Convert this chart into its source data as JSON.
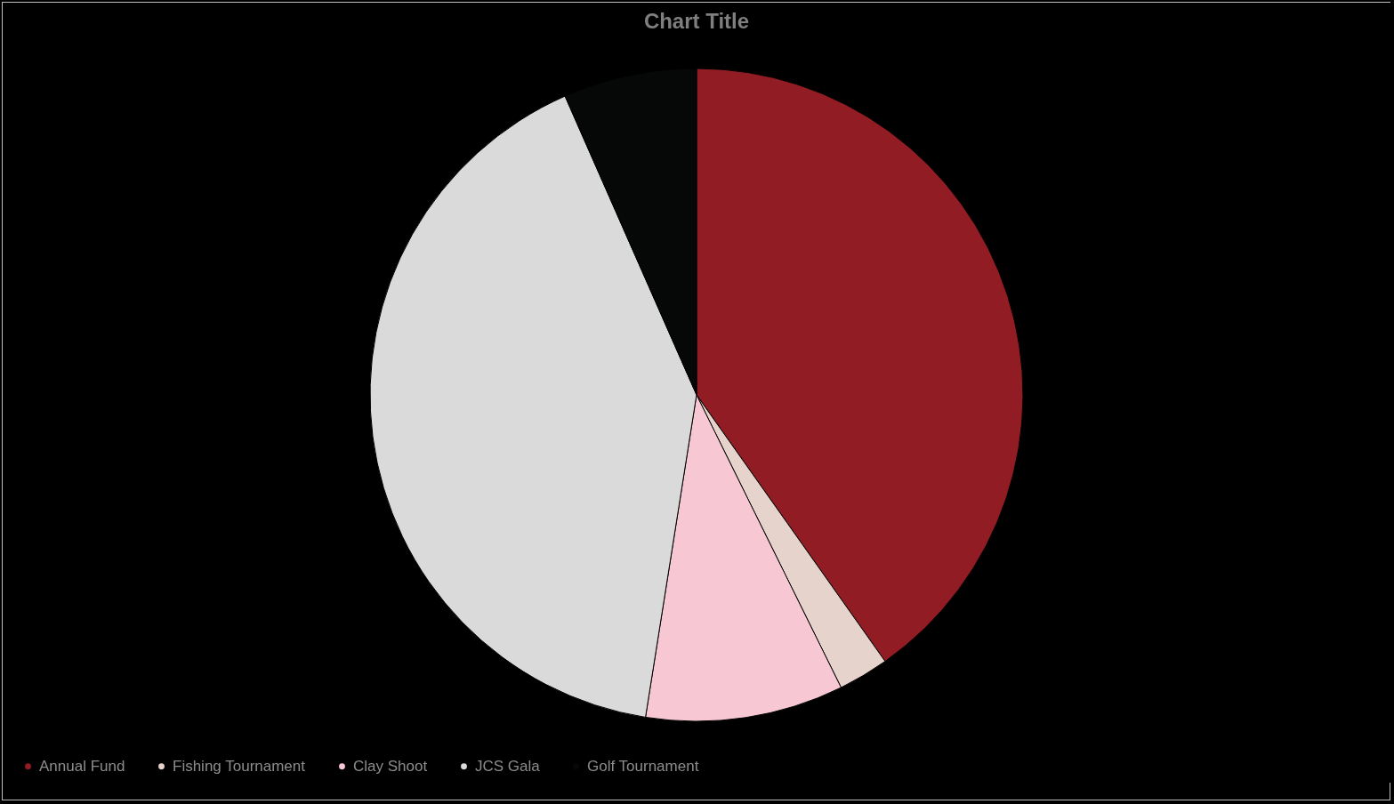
{
  "chart_data": {
    "type": "pie",
    "title": "Chart Title",
    "categories": [
      "Annual Fund",
      "Fishing Tournament",
      "Clay Shoot",
      "JCS Gala",
      "Golf Tournament"
    ],
    "values": [
      40.2,
      2.5,
      9.8,
      40.9,
      6.6
    ],
    "colors": [
      "#921c24",
      "#e6d3cc",
      "#f7c7d3",
      "#d9dad9",
      "#060808"
    ],
    "legend": "bottom"
  }
}
